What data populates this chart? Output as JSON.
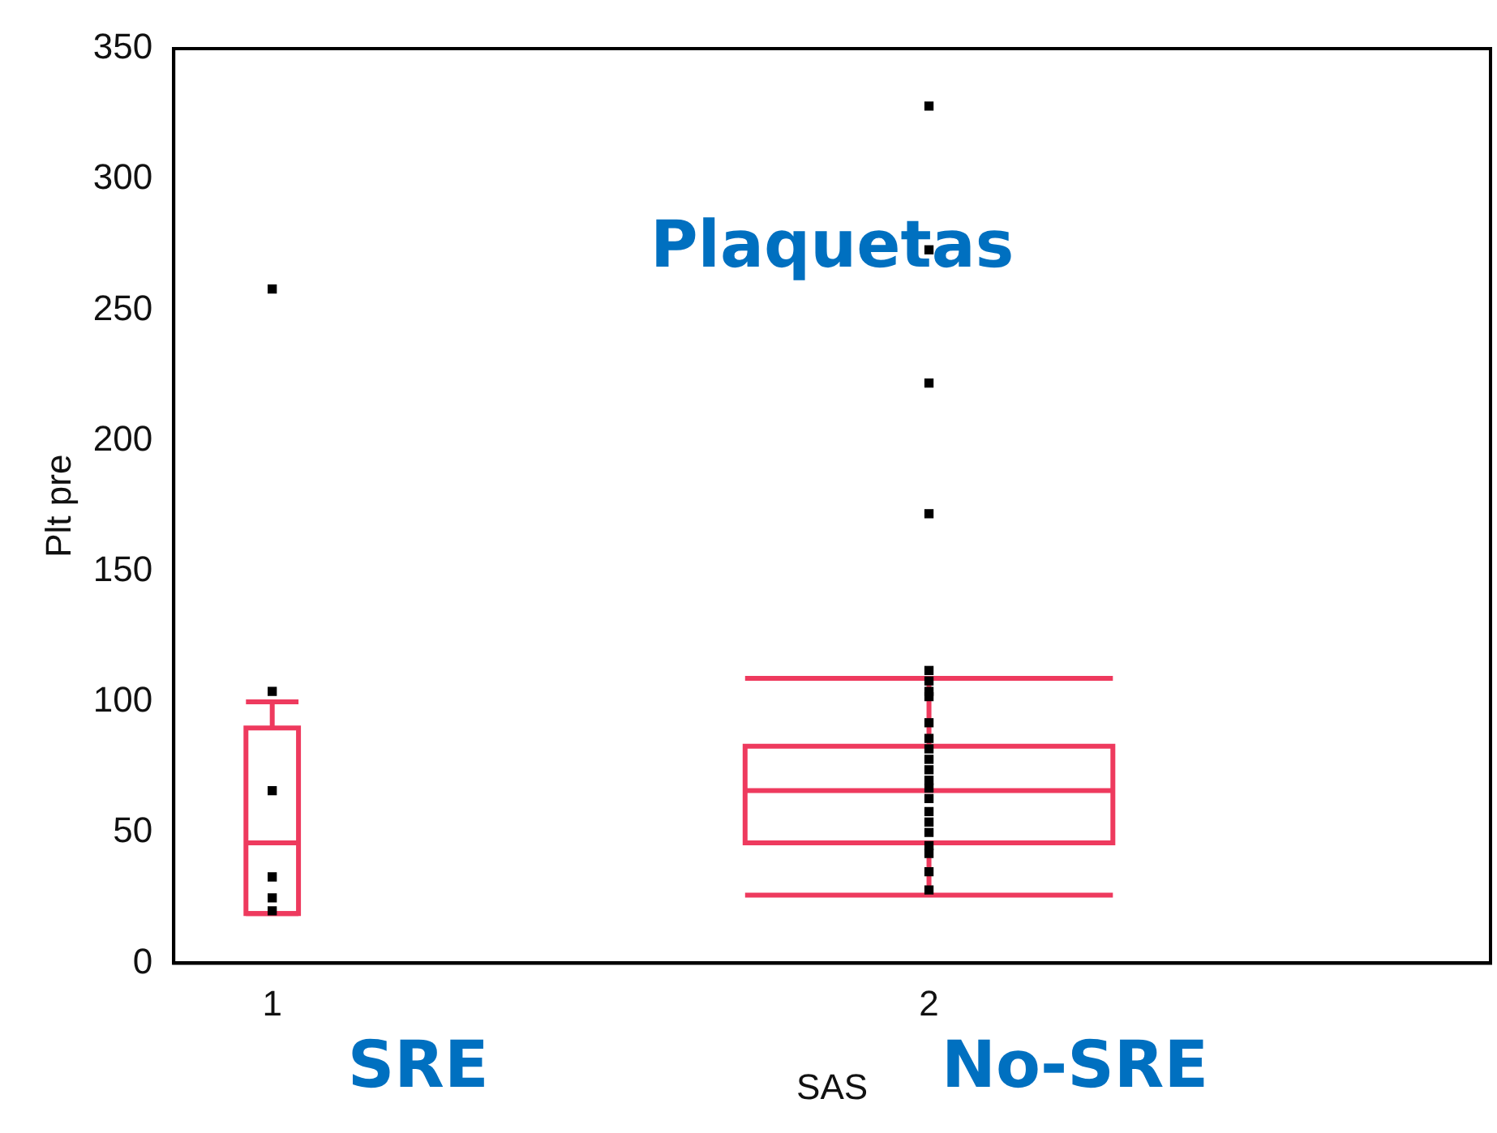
{
  "chart_data": {
    "type": "box",
    "title": "Plaquetas",
    "xlabel": "SAS",
    "ylabel": "Plt pre",
    "categories": [
      "1",
      "2"
    ],
    "boxes": [
      {
        "low": 19,
        "q1": 19,
        "median": 46,
        "q3": 90,
        "high": 100,
        "outliers": [
          258
        ]
      },
      {
        "low": 26,
        "q1": 46,
        "median": 66,
        "q3": 83,
        "high": 109,
        "outliers": [
          172,
          222,
          273,
          328
        ]
      }
    ],
    "color": "#ee3a5e",
    "series": [
      {
        "type": "scatter",
        "color": "#000000",
        "x": [
          "1",
          "1",
          "1",
          "1",
          "1"
        ],
        "values": [
          104,
          66,
          33,
          25,
          20
        ]
      },
      {
        "type": "scatter",
        "color": "#000000",
        "x": [
          "2",
          "2",
          "2",
          "2",
          "2",
          "2",
          "2",
          "2",
          "2",
          "2",
          "2",
          "2",
          "2",
          "2",
          "2",
          "2",
          "2",
          "2",
          "2"
        ],
        "values": [
          112,
          108,
          104,
          102,
          92,
          86,
          82,
          78,
          74,
          70,
          67,
          63,
          58,
          54,
          50,
          45,
          42,
          35,
          28
        ]
      }
    ],
    "marker": "square",
    "ylim": [
      0,
      350
    ],
    "yticks": [
      0,
      50,
      100,
      150,
      200,
      250,
      300,
      350
    ],
    "grid": false,
    "legend": false,
    "annotations": [
      "SRE",
      "No-SRE"
    ]
  }
}
